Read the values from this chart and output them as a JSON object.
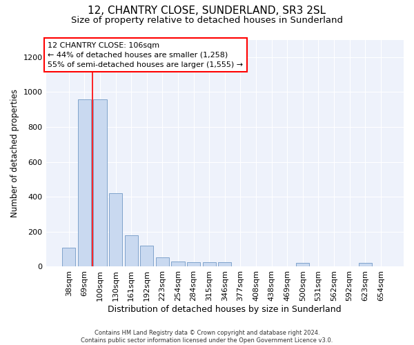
{
  "title": "12, CHANTRY CLOSE, SUNDERLAND, SR3 2SL",
  "subtitle": "Size of property relative to detached houses in Sunderland",
  "xlabel": "Distribution of detached houses by size in Sunderland",
  "ylabel": "Number of detached properties",
  "categories": [
    "38sqm",
    "69sqm",
    "100sqm",
    "130sqm",
    "161sqm",
    "192sqm",
    "223sqm",
    "254sqm",
    "284sqm",
    "315sqm",
    "346sqm",
    "377sqm",
    "408sqm",
    "438sqm",
    "469sqm",
    "500sqm",
    "531sqm",
    "562sqm",
    "592sqm",
    "623sqm",
    "654sqm"
  ],
  "values": [
    110,
    960,
    960,
    420,
    180,
    120,
    55,
    30,
    25,
    25,
    25,
    0,
    0,
    0,
    0,
    20,
    0,
    0,
    0,
    20,
    0
  ],
  "bar_color": "#c9d9f0",
  "bar_edge_color": "#7098c4",
  "vline_x": 1.5,
  "vline_color": "red",
  "annotation_text": "12 CHANTRY CLOSE: 106sqm\n← 44% of detached houses are smaller (1,258)\n55% of semi-detached houses are larger (1,555) →",
  "annotation_box_color": "white",
  "annotation_box_edge": "red",
  "ylim": [
    0,
    1300
  ],
  "yticks": [
    0,
    200,
    400,
    600,
    800,
    1000,
    1200
  ],
  "bg_color": "#eef2fb",
  "footer": "Contains HM Land Registry data © Crown copyright and database right 2024.\nContains public sector information licensed under the Open Government Licence v3.0.",
  "title_fontsize": 11,
  "subtitle_fontsize": 9.5,
  "xlabel_fontsize": 9,
  "ylabel_fontsize": 8.5,
  "tick_fontsize": 8,
  "ann_fontsize": 8,
  "footer_fontsize": 6
}
